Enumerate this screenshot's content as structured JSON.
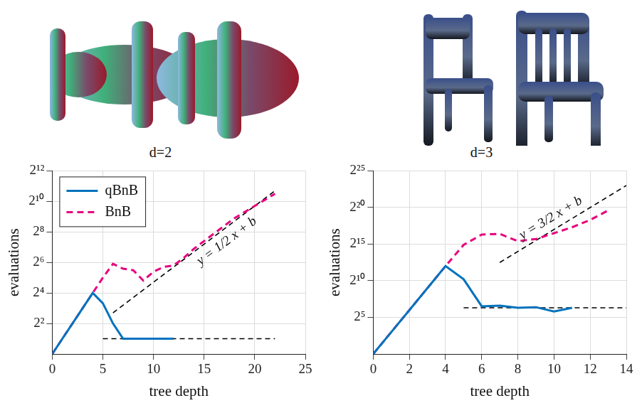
{
  "chart_data": [
    {
      "type": "line",
      "title": "d=2",
      "x_label": "tree depth",
      "y_label": "evaluations",
      "log": "y",
      "grid": true,
      "legend": "upper left",
      "xlim": [
        0,
        25
      ],
      "xticks": [
        0,
        5,
        10,
        15,
        20,
        25
      ],
      "ylim": [
        1,
        4096
      ],
      "yticks": [
        {
          "value": 4,
          "label": "2²"
        },
        {
          "value": 16,
          "label": "2⁴"
        },
        {
          "value": 64,
          "label": "2⁶"
        },
        {
          "value": 256,
          "label": "2⁸"
        },
        {
          "value": 1024,
          "label": "2¹⁰"
        },
        {
          "value": 4096,
          "label": "2¹²"
        }
      ],
      "series": [
        {
          "name": "qBnB",
          "color": "#0072bd",
          "line_style": "solid",
          "x": [
            0,
            1,
            2,
            3,
            4,
            5,
            6,
            7,
            8,
            9,
            10,
            11,
            12
          ],
          "values": [
            1,
            2,
            4,
            8,
            16,
            10,
            4,
            2,
            2,
            2,
            2,
            2,
            2
          ]
        },
        {
          "name": "BnB",
          "color": "#e6007e",
          "line_style": "dashed",
          "x": [
            0,
            1,
            2,
            3,
            4,
            5,
            6,
            7,
            8,
            9,
            10,
            11,
            12,
            13,
            14,
            15,
            16,
            17,
            18,
            19,
            20,
            21,
            22
          ],
          "values": [
            1,
            2,
            4,
            8,
            16,
            32,
            60,
            48,
            45,
            28,
            42,
            52,
            56,
            79,
            119,
            169,
            239,
            338,
            478,
            630,
            832,
            1097,
            1448
          ]
        }
      ],
      "annotations": [
        {
          "text": "y = 1/2 x + b",
          "color": "#000000",
          "line_style": "dashed",
          "x": [
            6,
            22
          ],
          "values": [
            6.5,
            1663
          ]
        },
        {
          "color": "#000000",
          "line_style": "dashed",
          "x": [
            5,
            22
          ],
          "values": [
            2,
            2
          ]
        }
      ]
    },
    {
      "type": "line",
      "title": "d=3",
      "x_label": "tree depth",
      "y_label": "evaluations",
      "log": "y",
      "grid": true,
      "xlim": [
        0,
        14
      ],
      "xticks": [
        0,
        2,
        4,
        6,
        8,
        10,
        12,
        14
      ],
      "ylim": [
        1,
        33554432
      ],
      "yticks": [
        {
          "value": 32,
          "label": "2⁵"
        },
        {
          "value": 1024,
          "label": "2¹⁰"
        },
        {
          "value": 32768,
          "label": "2¹⁵"
        },
        {
          "value": 1048576,
          "label": "2²⁰"
        },
        {
          "value": 33554432,
          "label": "2²⁵"
        }
      ],
      "series": [
        {
          "color": "#0072bd",
          "line_style": "solid",
          "x": [
            0,
            1,
            2,
            3,
            4,
            5,
            6,
            7,
            8,
            9,
            10,
            11
          ],
          "values": [
            1,
            8,
            64,
            512,
            4096,
            1176,
            91,
            97,
            79,
            84,
            56,
            79
          ]
        },
        {
          "color": "#e6007e",
          "line_style": "dashed",
          "x": [
            0,
            1,
            2,
            3,
            4,
            5,
            6,
            7,
            8,
            9,
            10,
            11,
            12,
            13
          ],
          "values": [
            1,
            8,
            64,
            512,
            4096,
            30574,
            80684,
            86475,
            43238,
            53232,
            92682,
            161398,
            322796,
            794672
          ]
        }
      ],
      "annotations": [
        {
          "text": "y = 3/2 x + b",
          "color": "#000000",
          "line_style": "dashed",
          "x": [
            7,
            14
          ],
          "values": [
            5793,
            8388608
          ]
        },
        {
          "color": "#000000",
          "line_style": "dashed",
          "x": [
            5,
            14
          ],
          "values": [
            79,
            79
          ]
        }
      ]
    }
  ]
}
